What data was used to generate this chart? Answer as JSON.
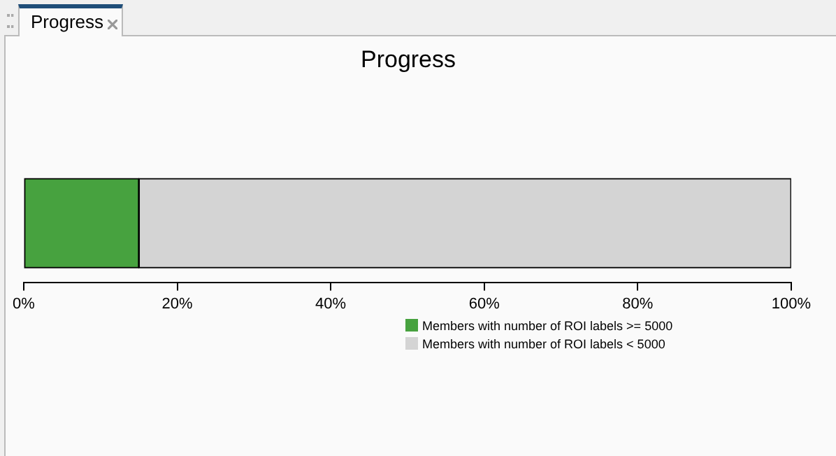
{
  "chart_data": {
    "type": "bar",
    "title": "Progress",
    "orientation": "horizontal",
    "stacked": true,
    "categories": [
      null
    ],
    "series": [
      {
        "name": "Members with number of ROI labels >= 5000",
        "color": "#47a23f",
        "values": [
          15
        ]
      },
      {
        "name": "Members with number of ROI labels < 5000",
        "color": "#d4d4d4",
        "values": [
          85
        ]
      }
    ],
    "xlim": [
      0,
      100
    ],
    "xticks": [
      {
        "value": 0,
        "label": "0%"
      },
      {
        "value": 20,
        "label": "20%"
      },
      {
        "value": 40,
        "label": "40%"
      },
      {
        "value": 60,
        "label": "60%"
      },
      {
        "value": 80,
        "label": "80%"
      },
      {
        "value": 100,
        "label": "100%"
      }
    ],
    "grid": false,
    "legend": "bottom"
  }
}
